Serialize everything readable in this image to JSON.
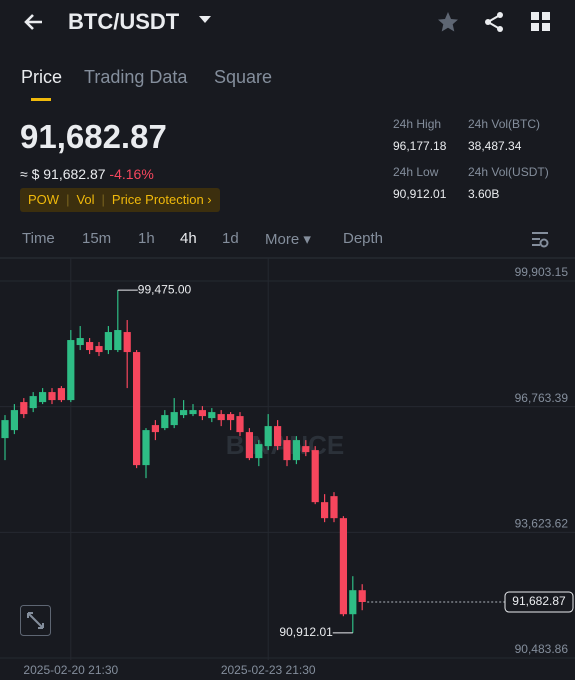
{
  "header": {
    "pair": "BTC/USDT"
  },
  "tabs": [
    "Price",
    "Trading Data",
    "Square"
  ],
  "ticker": {
    "price": "91,682.87",
    "approx": "≈ $ 91,682.87",
    "change": "-4.16%",
    "tags": [
      "POW",
      "Vol",
      "Price Protection"
    ],
    "stats": [
      {
        "label": "24h High",
        "value": "96,177.18"
      },
      {
        "label": "24h Vol(BTC)",
        "value": "38,487.34"
      },
      {
        "label": "24h Low",
        "value": "90,912.01"
      },
      {
        "label": "24h Vol(USDT)",
        "value": "3.60B"
      }
    ]
  },
  "intervals": [
    "Time",
    "15m",
    "1h",
    "4h",
    "1d",
    "More",
    "Depth"
  ],
  "chart_data": {
    "type": "candlestick",
    "watermark": "BINANCE",
    "up_color": "#2ebd85",
    "down_color": "#f6465d",
    "categories": [
      null,
      null,
      null,
      null,
      null,
      null,
      null,
      "2025-02-20 21:30",
      null,
      null,
      null,
      null,
      null,
      null,
      null,
      null,
      null,
      null,
      null,
      null,
      null,
      null,
      null,
      null,
      null,
      null,
      null,
      null,
      "2025-02-23 21:30",
      null,
      null,
      null,
      null,
      null,
      null,
      null,
      null,
      null,
      null
    ],
    "open": [
      95778,
      95978,
      96678,
      96528,
      96678,
      96928,
      97028,
      96728,
      98103,
      98178,
      98078,
      97978,
      97978,
      98428,
      97928,
      95103,
      96103,
      96028,
      96103,
      96353,
      96378,
      96478,
      96278,
      96378,
      96378,
      96328,
      95928,
      95278,
      95578,
      96078,
      95728,
      95228,
      95578,
      95478,
      94178,
      94328,
      93778,
      91378,
      91978
    ],
    "high": [
      96353,
      96628,
      96778,
      96928,
      97028,
      97028,
      97078,
      98478,
      98578,
      98278,
      98178,
      98578,
      99475.0,
      98728,
      97978,
      96028,
      96228,
      96478,
      96778,
      96728,
      96628,
      96578,
      96528,
      96478,
      96428,
      96428,
      96028,
      95728,
      96378,
      96228,
      95828,
      95828,
      95728,
      95578,
      94378,
      94428,
      93828,
      92328,
      92128
    ],
    "low": [
      95228,
      95878,
      96278,
      96428,
      96628,
      96628,
      96678,
      96678,
      97978,
      97878,
      97828,
      97878,
      97928,
      97028,
      95028,
      94778,
      95728,
      95978,
      96028,
      96278,
      96328,
      96228,
      96178,
      96078,
      95978,
      95828,
      95228,
      95078,
      95478,
      95478,
      95078,
      95128,
      95328,
      94128,
      93678,
      93678,
      91328,
      90912.01,
      91478
    ],
    "close": [
      96228,
      96478,
      96378,
      96828,
      96928,
      96728,
      96728,
      98228,
      98278,
      97978,
      97928,
      98428,
      98478,
      97928,
      95103,
      95978,
      95928,
      96353,
      96428,
      96478,
      96478,
      96328,
      96428,
      96228,
      96228,
      95928,
      95278,
      95628,
      96078,
      95578,
      95228,
      95728,
      95428,
      94178,
      93778,
      93778,
      91378,
      91978,
      91682.87
    ],
    "ylim": [
      90483.86,
      99903.15
    ],
    "yticks": [
      {
        "value": 90483.86,
        "label": "90,483.86"
      },
      {
        "value": 93623.62,
        "label": "93,623.62"
      },
      {
        "value": 96763.39,
        "label": "96,763.39"
      },
      {
        "value": 99903.15,
        "label": "99,903.15"
      }
    ],
    "annotations": [
      {
        "value": 99475.0,
        "label": "99,475.00"
      },
      {
        "value": 90912.01,
        "label": "90,912.01"
      }
    ],
    "last_price": 91682.87,
    "last_price_label": "91,682.87"
  }
}
